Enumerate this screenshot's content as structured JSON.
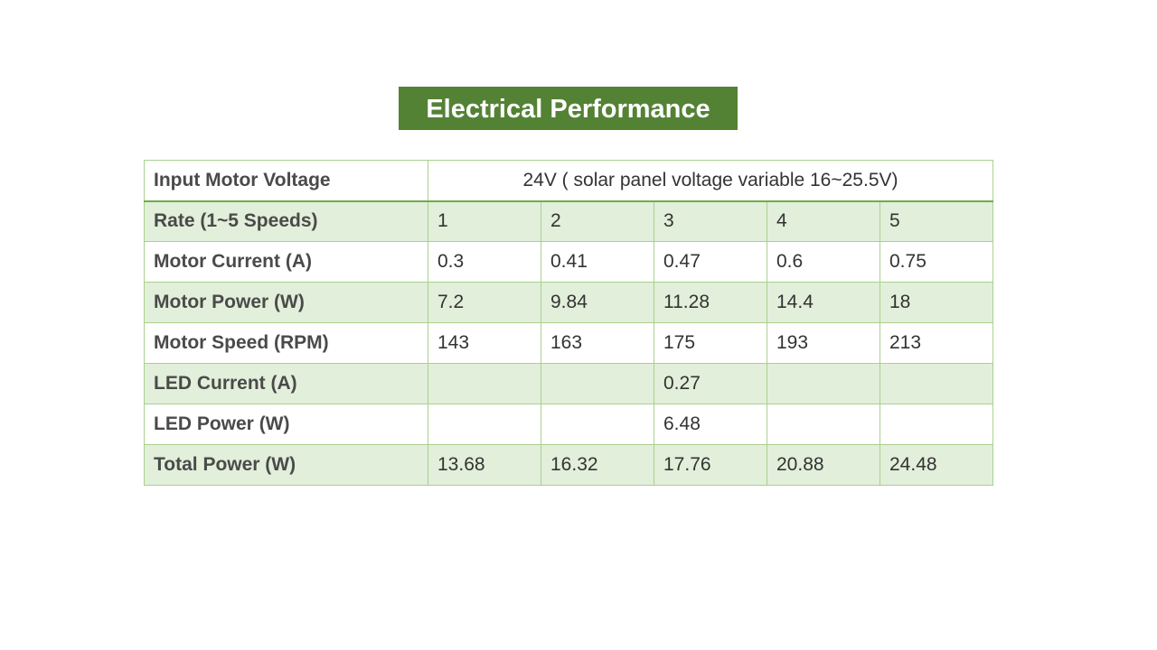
{
  "title": "Electrical Performance",
  "input_row": {
    "label": "Input Motor Voltage",
    "value": "24V  ( solar panel voltage variable 16~25.5V)"
  },
  "rows": [
    {
      "label": "Rate (1~5 Speeds)",
      "values": [
        "1",
        "2",
        "3",
        "4",
        "5"
      ]
    },
    {
      "label": "Motor Current (A)",
      "values": [
        "0.3",
        "0.41",
        "0.47",
        "0.6",
        "0.75"
      ]
    },
    {
      "label": "Motor Power (W)",
      "values": [
        "7.2",
        "9.84",
        "11.28",
        "14.4",
        "18"
      ]
    },
    {
      "label": "Motor Speed (RPM)",
      "values": [
        "143",
        "163",
        "175",
        "193",
        "213"
      ]
    },
    {
      "label": "LED Current (A)",
      "values": [
        "",
        "",
        "0.27",
        "",
        ""
      ]
    },
    {
      "label": "LED Power (W)",
      "values": [
        "",
        "",
        "6.48",
        "",
        ""
      ]
    },
    {
      "label": "Total Power (W)",
      "values": [
        "13.68",
        "16.32",
        "17.76",
        "20.88",
        "24.48"
      ]
    }
  ],
  "colors": {
    "title_background": "#548235",
    "title_text": "#ffffff",
    "row_shade": "#e2efda",
    "grid_line": "#a9d08e"
  }
}
